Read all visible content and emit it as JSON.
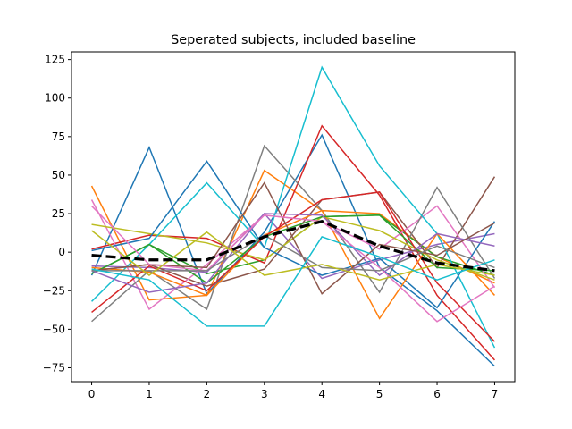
{
  "chart_data": {
    "type": "line",
    "title": "Seperated subjects, included baseline",
    "xlabel": "",
    "ylabel": "",
    "x": [
      0,
      1,
      2,
      3,
      4,
      5,
      6,
      7
    ],
    "xlim": [
      -0.35,
      7.35
    ],
    "ylim": [
      -84,
      130
    ],
    "x_ticks": [
      "0",
      "1",
      "2",
      "3",
      "4",
      "5",
      "6",
      "7"
    ],
    "y_ticks": [
      -75,
      -50,
      -25,
      0,
      25,
      50,
      75,
      100,
      125
    ],
    "y_tick_labels": [
      "−75",
      "−50",
      "−25",
      "0",
      "25",
      "50",
      "75",
      "100",
      "125"
    ],
    "grid": false,
    "legend": "none",
    "series": [
      {
        "color": "#1f77b4",
        "width": 1.5,
        "dash": "",
        "values": [
          -15,
          68,
          -27,
          13,
          76,
          -10,
          -38,
          -74
        ]
      },
      {
        "color": "#ff7f0e",
        "width": 1.5,
        "dash": "",
        "values": [
          43,
          -31,
          -28,
          53,
          27,
          25,
          -3,
          -20
        ]
      },
      {
        "color": "#2ca02c",
        "width": 1.5,
        "dash": "",
        "values": [
          -14,
          5,
          -14,
          -5,
          23,
          24,
          -3,
          -15
        ]
      },
      {
        "color": "#d62728",
        "width": 1.5,
        "dash": "",
        "values": [
          2,
          11,
          9,
          -7,
          82,
          37,
          -28,
          -70
        ]
      },
      {
        "color": "#9467bd",
        "width": 1.5,
        "dash": "",
        "values": [
          -9,
          -10,
          -13,
          25,
          -17,
          -5,
          5,
          12
        ]
      },
      {
        "color": "#8c564b",
        "width": 1.5,
        "dash": "",
        "values": [
          -12,
          -8,
          -22,
          -11,
          34,
          39,
          -10,
          49
        ]
      },
      {
        "color": "#e377c2",
        "width": 1.5,
        "dash": "",
        "values": [
          34,
          -37,
          -8,
          24,
          20,
          2,
          30,
          -23
        ]
      },
      {
        "color": "#7f7f7f",
        "width": 1.5,
        "dash": "",
        "values": [
          -45,
          -12,
          -37,
          69,
          27,
          -26,
          42,
          -17
        ]
      },
      {
        "color": "#bcbd22",
        "width": 1.5,
        "dash": "",
        "values": [
          18,
          12,
          6,
          -5,
          23,
          14,
          -5,
          -18
        ]
      },
      {
        "color": "#17becf",
        "width": 1.5,
        "dash": "",
        "values": [
          -32,
          5,
          45,
          3,
          120,
          56,
          12,
          -62
        ]
      },
      {
        "color": "#1f77b4",
        "width": 1.5,
        "dash": "",
        "values": [
          1,
          9,
          59,
          3,
          -15,
          -4,
          -36,
          20
        ]
      },
      {
        "color": "#ff7f0e",
        "width": 1.5,
        "dash": "",
        "values": [
          -10,
          -13,
          -28,
          11,
          27,
          -43,
          12,
          -28
        ]
      },
      {
        "color": "#2ca02c",
        "width": 1.5,
        "dash": "",
        "values": [
          -14,
          5,
          -20,
          10,
          23,
          24,
          -10,
          -12
        ]
      },
      {
        "color": "#d62728",
        "width": 1.5,
        "dash": "",
        "values": [
          -39,
          -9,
          -25,
          10,
          34,
          39,
          -20,
          -58
        ]
      },
      {
        "color": "#9467bd",
        "width": 1.5,
        "dash": "",
        "values": [
          -12,
          -26,
          -20,
          25,
          24,
          -15,
          12,
          4
        ]
      },
      {
        "color": "#8c564b",
        "width": 1.5,
        "dash": "",
        "values": [
          -12,
          -8,
          -10,
          45,
          -27,
          5,
          -2,
          19
        ]
      },
      {
        "color": "#e377c2",
        "width": 1.5,
        "dash": "",
        "values": [
          30,
          -8,
          -12,
          24,
          20,
          -10,
          -45,
          -22
        ]
      },
      {
        "color": "#7f7f7f",
        "width": 1.5,
        "dash": "",
        "values": [
          -12,
          -12,
          -12,
          11,
          -10,
          -12,
          4,
          -10
        ]
      },
      {
        "color": "#bcbd22",
        "width": 1.5,
        "dash": "",
        "values": [
          14,
          -15,
          13,
          -15,
          -8,
          -18,
          -8,
          -15
        ]
      },
      {
        "color": "#17becf",
        "width": 1.5,
        "dash": "",
        "values": [
          -11,
          -18,
          -48,
          -48,
          10,
          -3,
          -18,
          -5
        ]
      },
      {
        "color": "#000000",
        "width": 3.2,
        "dash": "11,5",
        "values": [
          -2,
          -5,
          -5,
          10,
          20,
          4,
          -7,
          -12
        ]
      }
    ]
  }
}
